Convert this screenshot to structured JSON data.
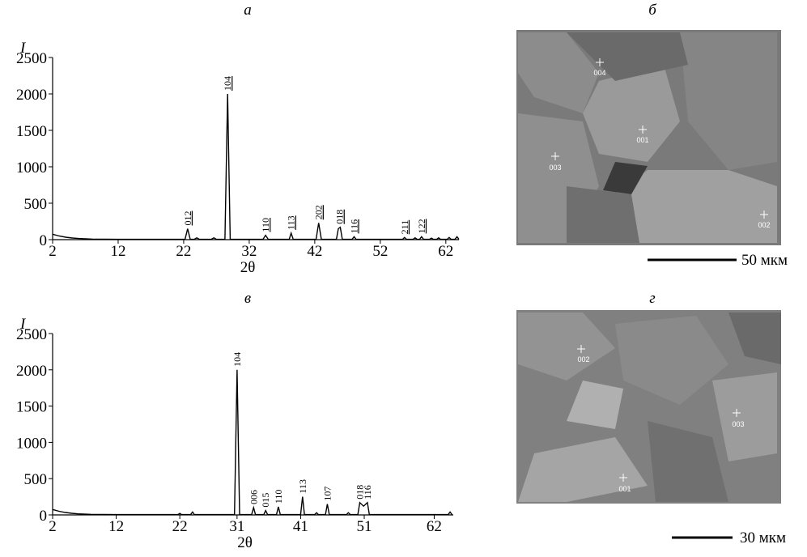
{
  "chart_data": [
    {
      "type": "line",
      "panel": "а",
      "ylabel": "I",
      "xlabel": "2θ",
      "color": "#000000",
      "xlim": [
        2,
        64
      ],
      "ylim": [
        0,
        2500
      ],
      "xticks": [
        2,
        12,
        22,
        32,
        42,
        52,
        62
      ],
      "yticks": [
        0,
        500,
        1000,
        1500,
        2000,
        2500
      ],
      "underline_labels": true,
      "x": [
        2,
        3,
        4,
        5,
        6,
        8,
        10,
        12,
        16,
        20,
        22.2,
        22.6,
        23.0,
        23.6,
        24.0,
        24.4,
        26.2,
        26.6,
        27.0,
        28.3,
        28.7,
        29.1,
        34.1,
        34.5,
        34.9,
        38.1,
        38.4,
        38.7,
        42.2,
        42.6,
        43.0,
        45.3,
        45.6,
        45.9,
        46.2,
        47.7,
        48.0,
        48.3,
        55.4,
        55.7,
        56.0,
        57.0,
        57.3,
        57.6,
        58.0,
        58.3,
        58.6,
        59.5,
        59.8,
        60.1,
        60.6,
        60.9,
        61.2,
        62.2,
        62.5,
        62.8,
        63.4,
        63.7,
        64.0
      ],
      "values": [
        75,
        50,
        33,
        22,
        15,
        8,
        6,
        5,
        5,
        5,
        5,
        150,
        5,
        5,
        25,
        5,
        5,
        25,
        5,
        5,
        2000,
        5,
        5,
        60,
        5,
        5,
        90,
        5,
        5,
        230,
        5,
        5,
        150,
        170,
        5,
        5,
        40,
        5,
        5,
        30,
        5,
        5,
        25,
        5,
        5,
        40,
        5,
        5,
        20,
        5,
        5,
        25,
        5,
        5,
        30,
        5,
        5,
        40,
        5
      ],
      "annotations": [
        {
          "text": "012",
          "x": 22.6,
          "y": 150
        },
        {
          "text": "104",
          "x": 28.7,
          "y": 2000
        },
        {
          "text": "110",
          "x": 34.5,
          "y": 60
        },
        {
          "text": "113",
          "x": 38.4,
          "y": 90
        },
        {
          "text": "202",
          "x": 42.6,
          "y": 230
        },
        {
          "text": "018",
          "x": 45.8,
          "y": 170
        },
        {
          "text": "116",
          "x": 48.0,
          "y": 40
        },
        {
          "text": "211",
          "x": 55.7,
          "y": 30
        },
        {
          "text": "122",
          "x": 58.3,
          "y": 40
        }
      ]
    },
    {
      "type": "line",
      "panel": "в",
      "ylabel": "I",
      "xlabel": "2θ",
      "color": "#000000",
      "xlim": [
        2,
        65
      ],
      "ylim": [
        0,
        2500
      ],
      "xticks": [
        2,
        12,
        22,
        31,
        41,
        51,
        62
      ],
      "yticks": [
        0,
        500,
        1000,
        1500,
        2000,
        2500
      ],
      "underline_labels": false,
      "x": [
        2,
        3,
        4,
        5,
        6,
        8,
        10,
        12,
        16,
        20,
        21.7,
        22.0,
        22.3,
        23.7,
        24.0,
        24.3,
        30.6,
        31.0,
        31.4,
        33.3,
        33.6,
        33.9,
        35.2,
        35.5,
        35.8,
        37.2,
        37.5,
        37.8,
        41.0,
        41.3,
        41.6,
        43.2,
        43.5,
        43.8,
        44.9,
        45.2,
        45.5,
        48.2,
        48.5,
        48.8,
        50.0,
        50.3,
        50.9,
        51.5,
        51.8,
        64.2,
        64.5,
        64.8
      ],
      "values": [
        75,
        50,
        33,
        22,
        15,
        8,
        6,
        5,
        5,
        5,
        5,
        20,
        5,
        5,
        40,
        5,
        5,
        2000,
        5,
        5,
        100,
        5,
        5,
        60,
        5,
        5,
        110,
        5,
        5,
        250,
        5,
        5,
        30,
        5,
        5,
        150,
        5,
        5,
        30,
        5,
        5,
        170,
        120,
        170,
        5,
        5,
        40,
        5
      ],
      "annotations": [
        {
          "text": "104",
          "x": 31.0,
          "y": 2000
        },
        {
          "text": "006",
          "x": 33.6,
          "y": 100
        },
        {
          "text": "015",
          "x": 35.5,
          "y": 60
        },
        {
          "text": "110",
          "x": 37.5,
          "y": 110
        },
        {
          "text": "113",
          "x": 41.3,
          "y": 250
        },
        {
          "text": "107",
          "x": 45.2,
          "y": 150
        },
        {
          "text": "018",
          "x": 50.3,
          "y": 170
        },
        {
          "text": "116",
          "x": 51.5,
          "y": 170
        }
      ]
    }
  ],
  "images": [
    {
      "panel": "б",
      "scale_bar": "50 мкм",
      "spots": [
        "004",
        "001",
        "003",
        "002"
      ]
    },
    {
      "panel": "г",
      "scale_bar": "30 мкм",
      "spots": [
        "002",
        "003",
        "001"
      ]
    }
  ]
}
